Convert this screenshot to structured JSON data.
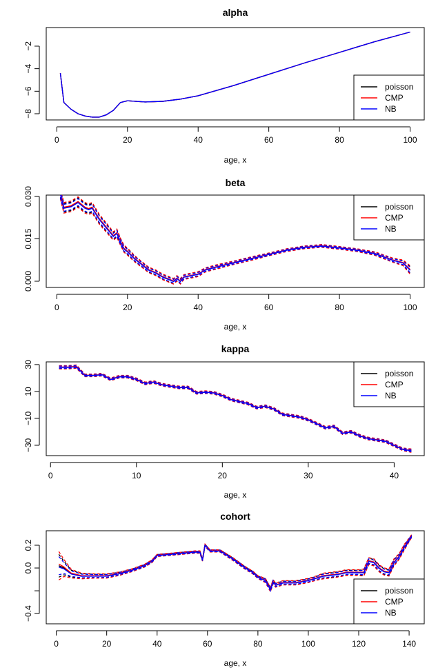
{
  "legend": {
    "entries": [
      "poisson",
      "CMP",
      "NB"
    ],
    "colors": {
      "poisson": "#000000",
      "CMP": "#ff0000",
      "NB": "#0000ff"
    },
    "placement": "right"
  },
  "chart_data": [
    {
      "type": "line",
      "title": "alpha",
      "xlabel": "age, x",
      "ylabel": "",
      "xlim": [
        -3,
        104
      ],
      "ylim": [
        -8.55,
        -0.35
      ],
      "xticks": [
        0,
        20,
        40,
        60,
        80,
        100
      ],
      "yticks": [
        -8,
        -6,
        -4,
        -2
      ],
      "legend_placement": "bottom-right",
      "x": [
        1,
        2,
        4,
        6,
        8,
        10,
        12,
        14,
        16,
        18,
        20,
        25,
        30,
        35,
        40,
        50,
        60,
        70,
        80,
        90,
        100
      ],
      "values": [
        -4.4,
        -7.0,
        -7.6,
        -8.0,
        -8.2,
        -8.3,
        -8.3,
        -8.1,
        -7.7,
        -7.0,
        -6.85,
        -6.95,
        -6.9,
        -6.7,
        -6.4,
        -5.5,
        -4.5,
        -3.5,
        -2.55,
        -1.6,
        -0.75
      ],
      "band": [
        0,
        0,
        0,
        0,
        0,
        0,
        0,
        0,
        0,
        0,
        0,
        0,
        0,
        0,
        0,
        0,
        0,
        0,
        0,
        0,
        0
      ]
    },
    {
      "type": "line",
      "title": "beta",
      "xlabel": "age, x",
      "ylabel": "",
      "xlim": [
        -3,
        104
      ],
      "ylim": [
        -0.0022,
        0.0305
      ],
      "xticks": [
        0,
        20,
        40,
        60,
        80,
        100
      ],
      "yticks": [
        0.0,
        0.015,
        0.03
      ],
      "ytick_labels": [
        "0.000",
        "0.015",
        "0.030"
      ],
      "legend_placement": "top-right",
      "x": [
        1,
        2,
        4,
        6,
        7,
        8,
        9,
        10,
        12,
        14,
        16,
        17,
        18,
        19,
        20,
        22,
        24,
        26,
        28,
        30,
        32,
        33,
        34,
        35,
        36,
        38,
        40,
        42,
        45,
        50,
        55,
        60,
        65,
        70,
        75,
        80,
        85,
        90,
        95,
        98,
        100
      ],
      "values": [
        0.031,
        0.026,
        0.0265,
        0.028,
        0.027,
        0.026,
        0.0255,
        0.026,
        0.022,
        0.019,
        0.016,
        0.017,
        0.014,
        0.0115,
        0.0105,
        0.008,
        0.006,
        0.004,
        0.003,
        0.0015,
        0.0005,
        0.0,
        0.001,
        0.0,
        0.0015,
        0.002,
        0.0025,
        0.004,
        0.005,
        0.0065,
        0.008,
        0.0095,
        0.011,
        0.012,
        0.0125,
        0.0118,
        0.011,
        0.0098,
        0.0075,
        0.0065,
        0.004
      ],
      "band": [
        0.0015,
        0.0015,
        0.0015,
        0.0015,
        0.0015,
        0.0015,
        0.0015,
        0.0015,
        0.0014,
        0.0013,
        0.0012,
        0.0012,
        0.001,
        0.001,
        0.001,
        0.0009,
        0.0008,
        0.0008,
        0.0008,
        0.0008,
        0.0008,
        0.0008,
        0.0008,
        0.0008,
        0.0007,
        0.0007,
        0.0007,
        0.0006,
        0.0006,
        0.0005,
        0.0005,
        0.0004,
        0.0004,
        0.0004,
        0.0004,
        0.0004,
        0.0004,
        0.0005,
        0.0006,
        0.0008,
        0.0012
      ]
    },
    {
      "type": "line",
      "title": "kappa",
      "xlabel": "age, x",
      "ylabel": "",
      "xlim": [
        -0.5,
        43.5
      ],
      "ylim": [
        -37.7,
        32
      ],
      "xticks": [
        0,
        10,
        20,
        30,
        40
      ],
      "yticks": [
        -30,
        -10,
        10,
        30
      ],
      "legend_placement": "top-right",
      "x": [
        1,
        2,
        3,
        4,
        5,
        6,
        7,
        8,
        9,
        10,
        11,
        12,
        13,
        14,
        15,
        16,
        17,
        18,
        19,
        20,
        21,
        22,
        23,
        24,
        25,
        26,
        27,
        28,
        29,
        30,
        31,
        32,
        33,
        34,
        35,
        36,
        37,
        38,
        39,
        40,
        41,
        42
      ],
      "values": [
        28,
        28,
        28.5,
        22,
        22,
        22.5,
        19,
        21,
        21,
        19,
        16,
        17,
        15,
        14,
        13,
        13,
        9,
        9.5,
        9,
        7,
        4,
        2.5,
        1,
        -2,
        -1,
        -3,
        -7,
        -8,
        -9,
        -11,
        -14,
        -17,
        -16,
        -21,
        -20,
        -23,
        -25,
        -26,
        -27,
        -30,
        -33,
        -34
      ],
      "band": [
        1,
        1,
        1,
        0.8,
        0.8,
        0.8,
        0.8,
        0.8,
        0.8,
        0.8,
        0.8,
        0.8,
        0.8,
        0.8,
        0.8,
        0.8,
        0.8,
        0.8,
        0.8,
        0.8,
        0.8,
        0.8,
        0.8,
        0.8,
        0.8,
        0.8,
        0.8,
        0.8,
        0.8,
        0.8,
        0.8,
        0.8,
        0.8,
        0.8,
        0.8,
        0.8,
        0.8,
        0.8,
        0.8,
        0.8,
        0.8,
        1
      ]
    },
    {
      "type": "line",
      "title": "cohort",
      "xlabel": "age, x",
      "ylabel": "",
      "xlim": [
        -4,
        146
      ],
      "ylim": [
        -0.49,
        0.327
      ],
      "xticks": [
        0,
        20,
        40,
        60,
        80,
        100,
        120,
        140
      ],
      "yticks": [
        -0.4,
        -0.2,
        0.0,
        0.2
      ],
      "ytick_labels": [
        "-0.4",
        "",
        "0.0",
        "0.2"
      ],
      "legend_placement": "bottom-right",
      "x": [
        1,
        3,
        6,
        10,
        15,
        20,
        25,
        30,
        35,
        38,
        40,
        45,
        50,
        55,
        57,
        58,
        59,
        61,
        65,
        70,
        75,
        78,
        80,
        83,
        85,
        86,
        87,
        90,
        95,
        100,
        103,
        106,
        110,
        113,
        115,
        120,
        122,
        124,
        126,
        128,
        130,
        132,
        134,
        136,
        138,
        141
      ],
      "values": [
        0.02,
        0.0,
        -0.05,
        -0.07,
        -0.07,
        -0.07,
        -0.05,
        -0.02,
        0.02,
        0.06,
        0.11,
        0.12,
        0.13,
        0.14,
        0.14,
        0.07,
        0.2,
        0.15,
        0.15,
        0.08,
        0.0,
        -0.04,
        -0.08,
        -0.11,
        -0.19,
        -0.12,
        -0.15,
        -0.13,
        -0.13,
        -0.11,
        -0.09,
        -0.07,
        -0.06,
        -0.05,
        -0.04,
        -0.04,
        -0.04,
        0.06,
        0.05,
        0.0,
        -0.03,
        -0.04,
        0.05,
        0.1,
        0.18,
        0.28
      ],
      "band": [
        0.1,
        0.06,
        0.03,
        0.02,
        0.015,
        0.015,
        0.012,
        0.01,
        0.01,
        0.01,
        0.008,
        0.008,
        0.008,
        0.008,
        0.008,
        0.008,
        0.008,
        0.008,
        0.008,
        0.01,
        0.01,
        0.01,
        0.01,
        0.015,
        0.015,
        0.015,
        0.015,
        0.015,
        0.015,
        0.015,
        0.015,
        0.02,
        0.02,
        0.02,
        0.02,
        0.02,
        0.025,
        0.025,
        0.025,
        0.025,
        0.025,
        0.025,
        0.025,
        0.02,
        0.02,
        0.01
      ]
    }
  ]
}
